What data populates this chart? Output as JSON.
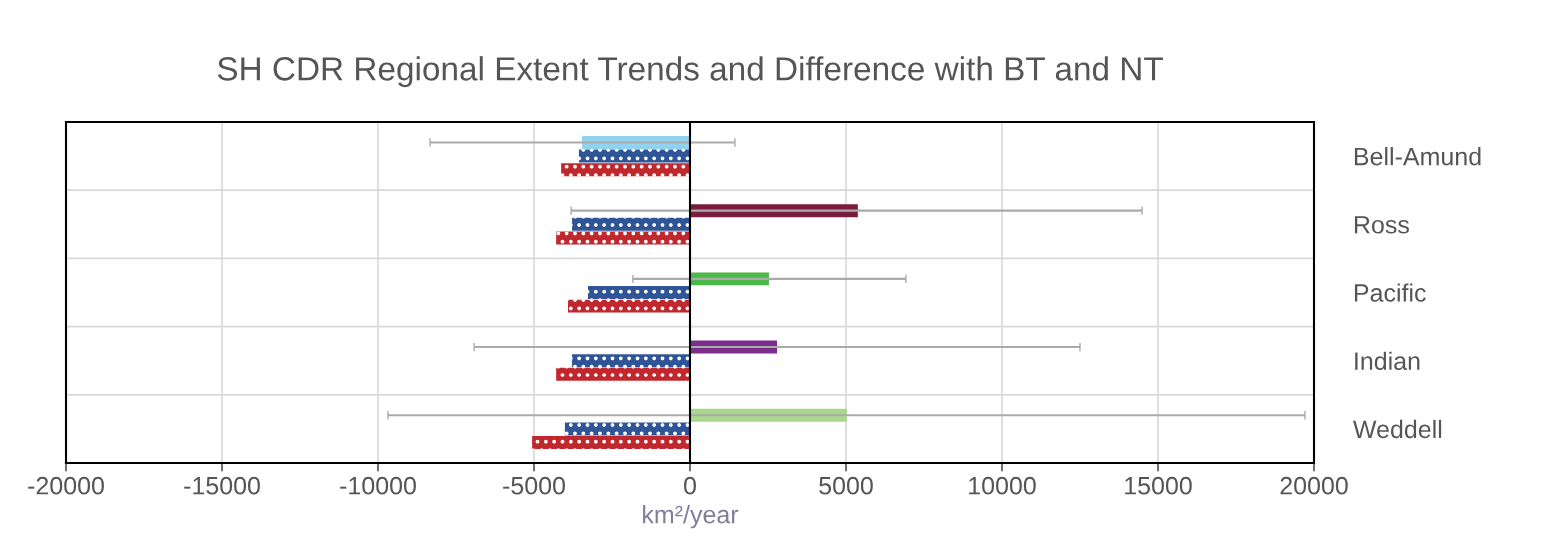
{
  "chart_data": {
    "type": "bar",
    "orientation": "horizontal",
    "title": "SH CDR Regional Extent Trends and Difference with BT and NT",
    "xlabel": "km²/year",
    "categories": [
      "Bell-Amund",
      "Ross",
      "Pacific",
      "Indian",
      "Weddell"
    ],
    "series": [
      {
        "colors": [
          "#8fd3f0",
          "#7b1c3e",
          "#4cb848",
          "#7b2d8b",
          "#a9d88d"
        ],
        "values": [
          -3460,
          5380,
          2530,
          2790,
          5030
        ],
        "errors": [
          [
            -8330,
            1440
          ],
          [
            -3810,
            14490
          ],
          [
            -1830,
            6920
          ],
          [
            -6920,
            12500
          ],
          [
            -9680,
            19710
          ]
        ]
      },
      {
        "color": "#2f5597",
        "values": [
          -3560,
          -3780,
          -3270,
          -3780,
          -4010
        ]
      },
      {
        "color": "#c0282d",
        "values": [
          -4130,
          -4290,
          -3910,
          -4290,
          -5060
        ]
      }
    ],
    "xlim": [
      -20000,
      20000
    ],
    "xticks": [
      -20000,
      -15000,
      -10000,
      -5000,
      0,
      5000,
      10000,
      15000,
      20000
    ],
    "grid": true
  }
}
